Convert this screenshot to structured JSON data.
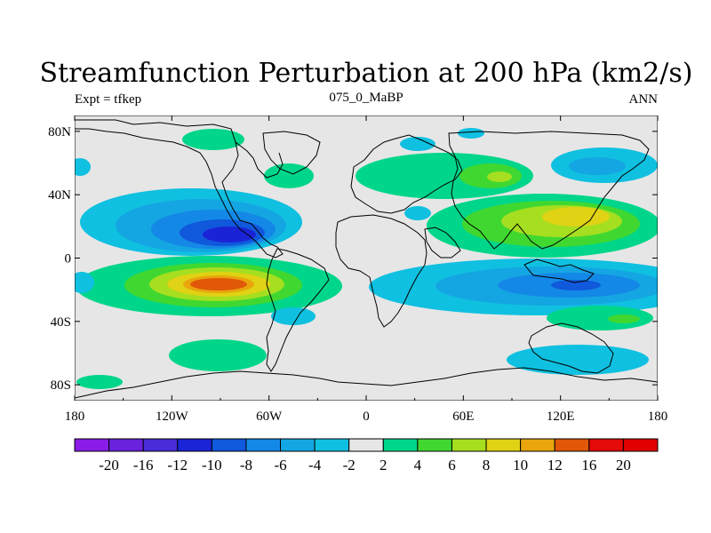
{
  "title": "Streamfunction Perturbation at 200 hPa (km2/s)",
  "left_label": "Expt = tfkep",
  "center_label": "075_0_MaBP",
  "right_label": "ANN",
  "x_ticks": [
    "180",
    "120W",
    "60W",
    "0",
    "60E",
    "120E",
    "180"
  ],
  "x_tick_values": [
    -180,
    -120,
    -60,
    0,
    60,
    120,
    180
  ],
  "y_ticks": [
    "80N",
    "40N",
    "0",
    "40S",
    "80S"
  ],
  "y_tick_values": [
    80,
    40,
    0,
    -40,
    -80
  ],
  "colorbar": {
    "labels": [
      "-20",
      "-16",
      "-12",
      "-10",
      "-8",
      "-6",
      "-4",
      "-2",
      "2",
      "4",
      "6",
      "8",
      "10",
      "12",
      "16",
      "20"
    ],
    "colors": [
      "#8a1ce8",
      "#6a22dc",
      "#4a2cd8",
      "#1a24d6",
      "#1058dc",
      "#1488e6",
      "#14a6e2",
      "#10c0e0",
      "#e6e6e6",
      "#00d68a",
      "#40d830",
      "#a6de20",
      "#e0d214",
      "#e8a60c",
      "#e05808",
      "#e40a0a",
      "#e00000"
    ]
  },
  "chart_data": {
    "type": "heatmap",
    "title": "Streamfunction Perturbation at 200 hPa (km2/s)",
    "xlim": [
      -180,
      180
    ],
    "ylim": [
      -90,
      90
    ],
    "levels": [
      -20,
      -16,
      -12,
      -10,
      -8,
      -6,
      -4,
      -2,
      2,
      4,
      6,
      8,
      10,
      12,
      16,
      20
    ],
    "features": [
      {
        "lon": -85,
        "lat": 12,
        "value": -11
      },
      {
        "lon": -85,
        "lat": -20,
        "value": 13
      },
      {
        "lon": -55,
        "lat": 62,
        "value": 3
      },
      {
        "lon": 85,
        "lat": 50,
        "value": 6
      },
      {
        "lon": 115,
        "lat": 20,
        "value": 9
      },
      {
        "lon": 120,
        "lat": -19,
        "value": -7
      },
      {
        "lon": 135,
        "lat": 52,
        "value": -4
      },
      {
        "lon": 130,
        "lat": -62,
        "value": -4
      },
      {
        "lon": 145,
        "lat": -40,
        "value": 5
      },
      {
        "lon": -100,
        "lat": -62,
        "value": 3
      }
    ]
  }
}
